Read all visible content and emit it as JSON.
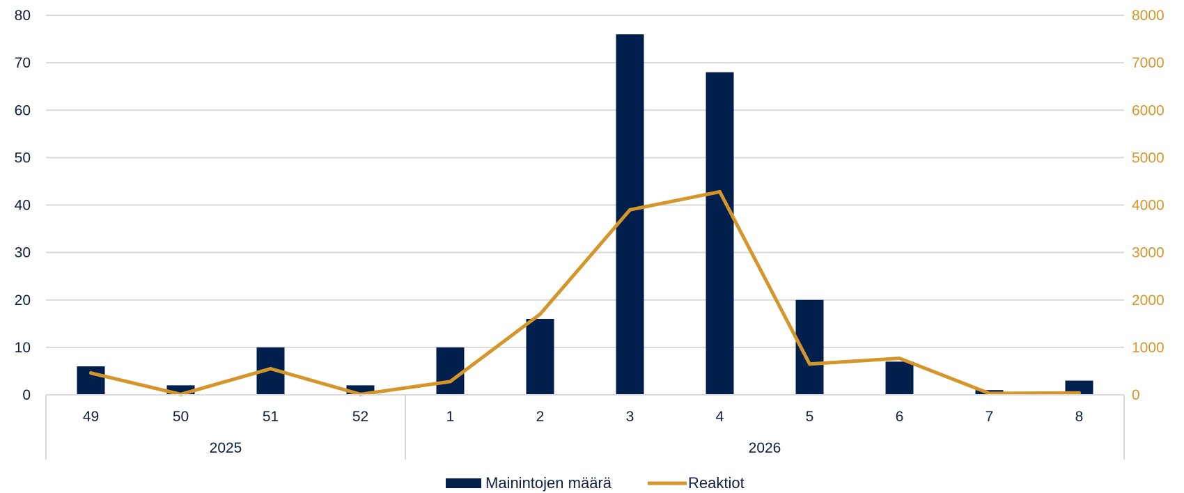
{
  "colors": {
    "bars": "#001f4c",
    "line": "#d4962a",
    "grid": "#d9d9d9",
    "axis_text_left": "#0d1f3c",
    "axis_text_right": "#d4962a"
  },
  "chart_data": {
    "type": "bar",
    "title": "",
    "xlabel": "",
    "ylabel": "",
    "categories": [
      "49",
      "50",
      "51",
      "52",
      "1",
      "2",
      "3",
      "4",
      "5",
      "6",
      "7",
      "8"
    ],
    "groups": [
      {
        "label": "2025",
        "categories": [
          "49",
          "50",
          "51",
          "52"
        ]
      },
      {
        "label": "2026",
        "categories": [
          "1",
          "2",
          "3",
          "4",
          "5",
          "6",
          "7",
          "8"
        ]
      }
    ],
    "series": [
      {
        "name": "Mainintojen määrä",
        "type": "bar",
        "axis": "left",
        "values": [
          6,
          2,
          10,
          2,
          10,
          16,
          76,
          68,
          20,
          7,
          1,
          3
        ]
      },
      {
        "name": "Reaktiot",
        "type": "line",
        "axis": "right",
        "values": [
          460,
          10,
          550,
          10,
          280,
          1700,
          3900,
          4280,
          650,
          770,
          30,
          40
        ]
      }
    ],
    "ylim_left": [
      0,
      80
    ],
    "yticks_left": [
      0,
      10,
      20,
      30,
      40,
      50,
      60,
      70,
      80
    ],
    "ylim_right": [
      0,
      8000
    ],
    "yticks_right": [
      0,
      1000,
      2000,
      3000,
      4000,
      5000,
      6000,
      7000,
      8000
    ],
    "grid": true,
    "legend": "bottom"
  }
}
